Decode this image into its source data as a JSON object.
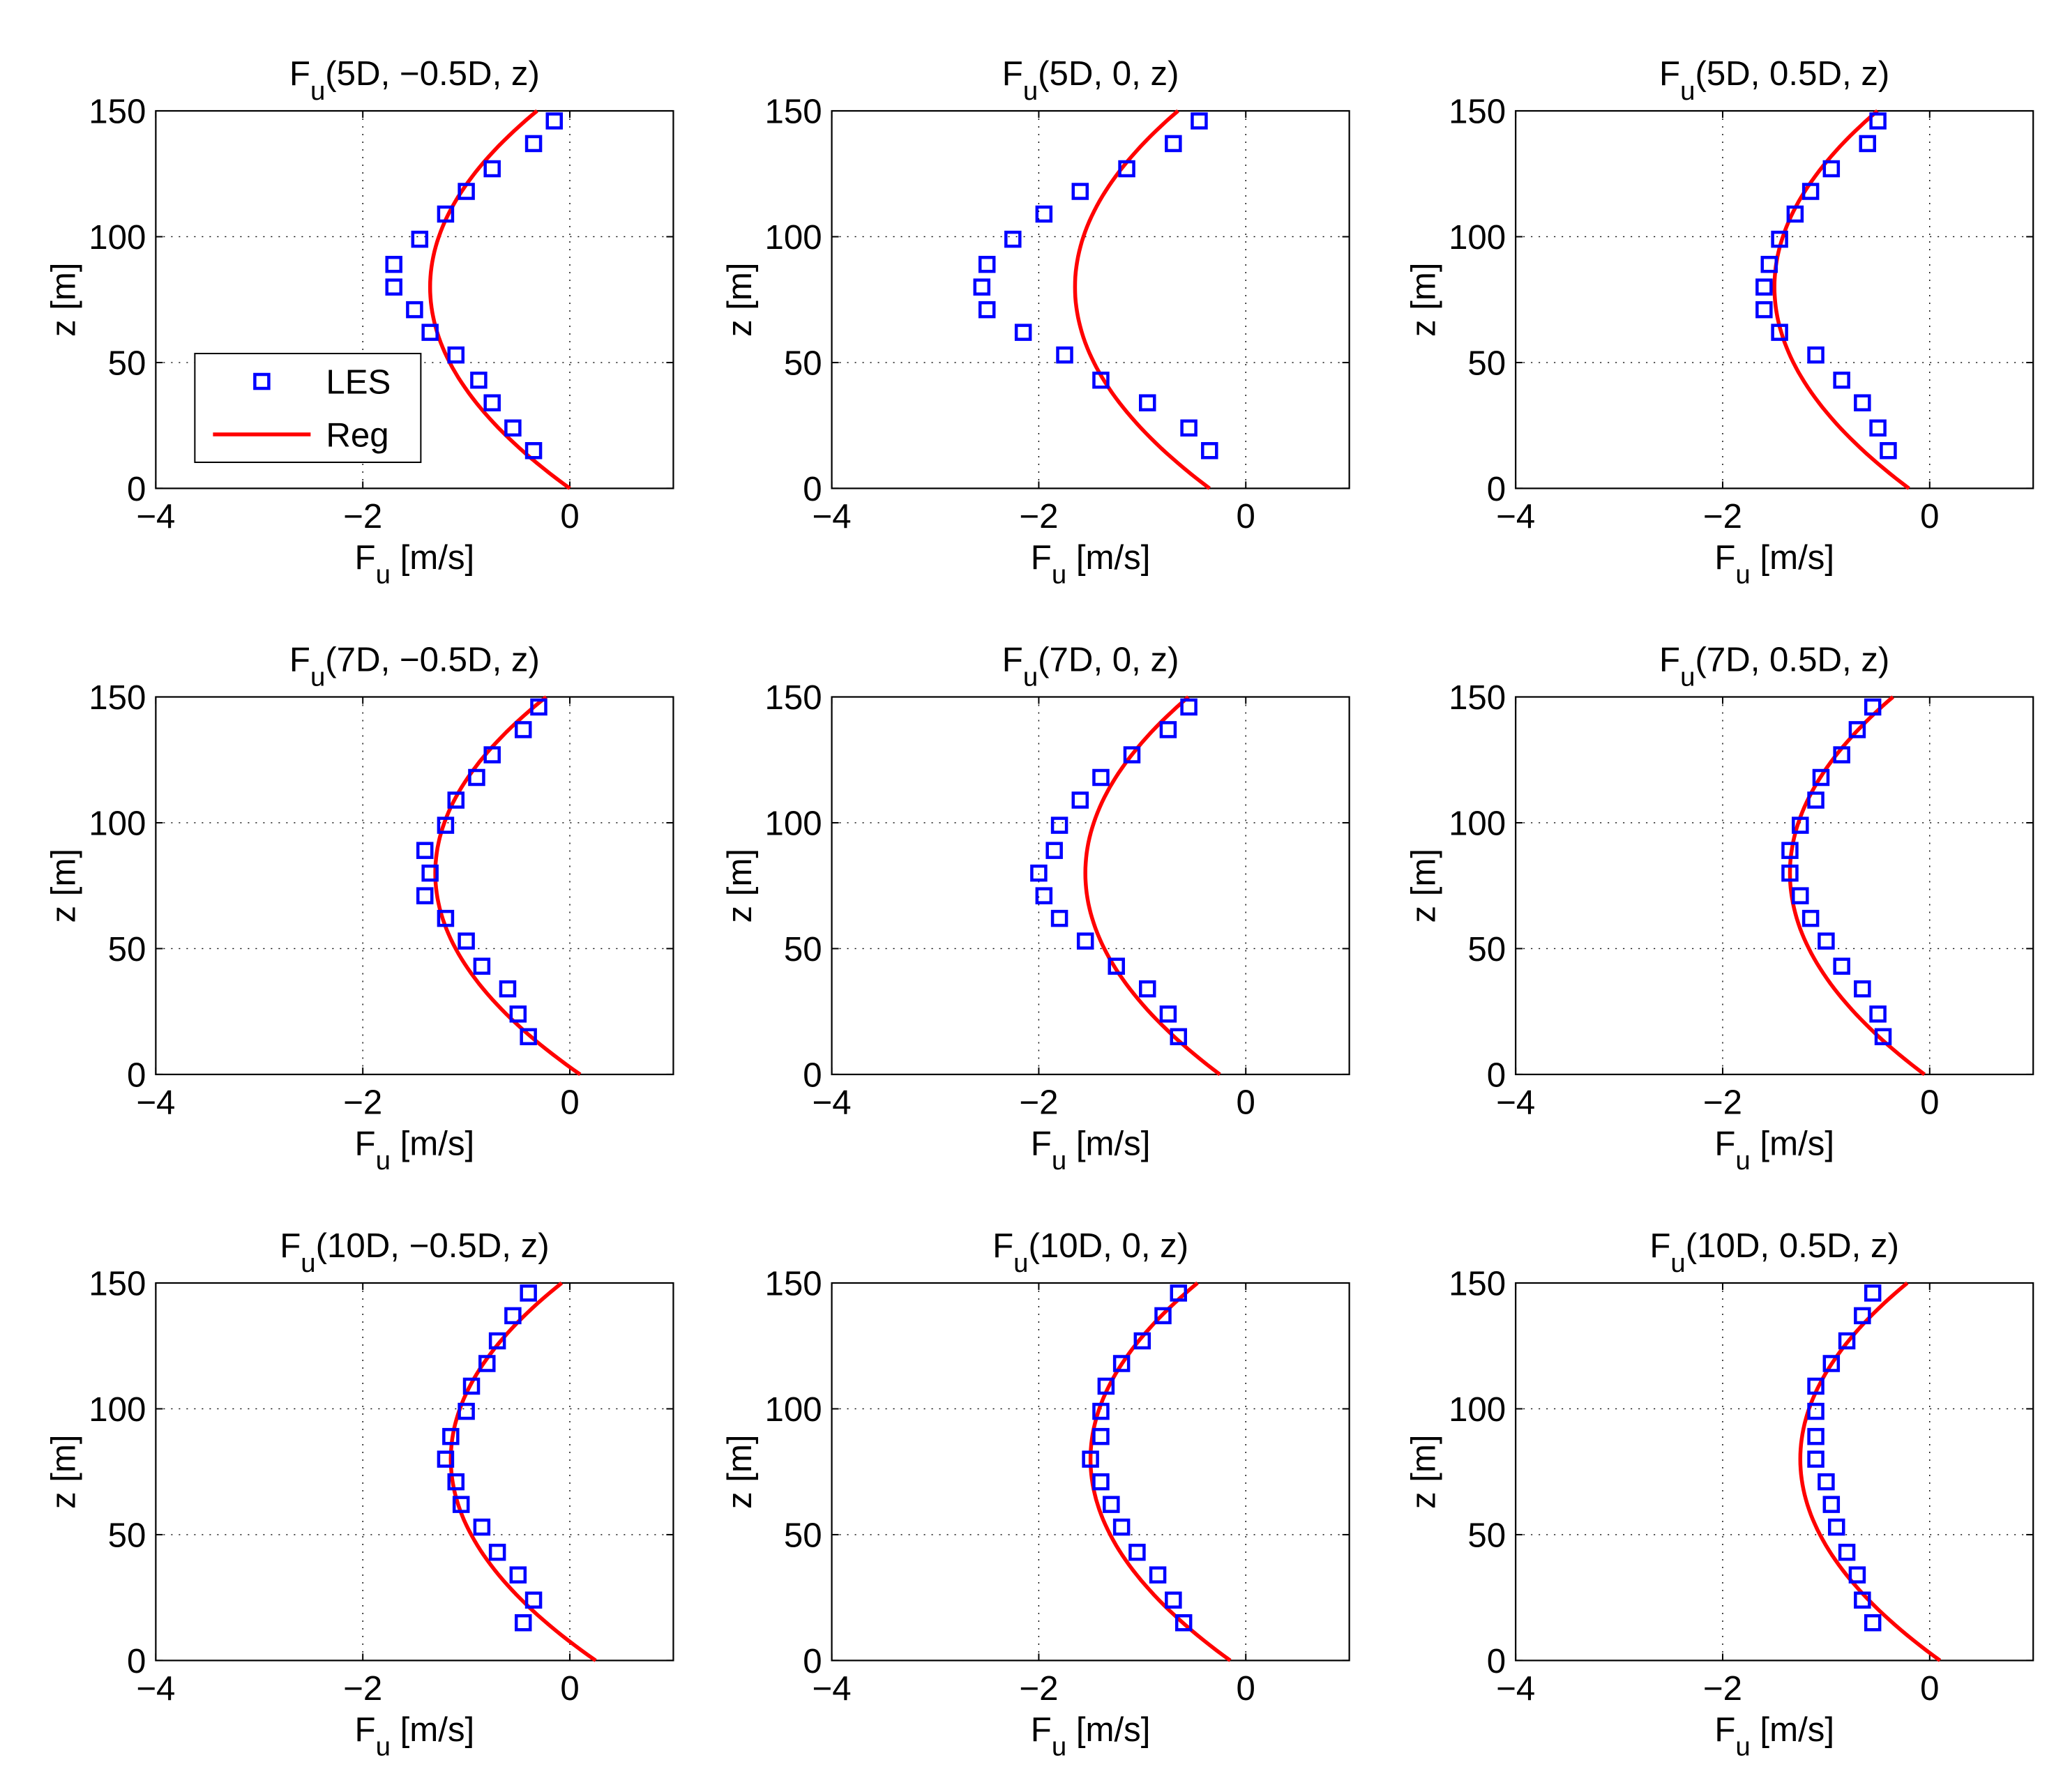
{
  "figure": {
    "x_ticks": [
      -4,
      -2,
      0
    ],
    "y_ticks": [
      0,
      50,
      100,
      150
    ],
    "xlim": [
      -4,
      1
    ],
    "ylim": [
      0,
      150
    ],
    "series_names": [
      "LES",
      "Reg"
    ],
    "colors": {
      "LES": "#0000FF",
      "Reg": "#FF0000",
      "grid": "#000000"
    }
  },
  "chart_data": [
    {
      "type": "scatter+line",
      "panel": "5D-m05",
      "title": {
        "main": "F",
        "sub": "u",
        "rest": "(5D, −0.5D, z)"
      },
      "xlabel": {
        "main": "F",
        "sub": "u",
        "rest": " [m/s]"
      },
      "ylabel": "z [m]",
      "xlim": [
        -4,
        1
      ],
      "ylim": [
        0,
        150
      ],
      "legend": {
        "location": "lower-left",
        "entries": [
          "LES",
          "Reg"
        ]
      },
      "les": {
        "z": [
          15,
          24,
          34,
          43,
          53,
          62,
          71,
          80,
          89,
          99,
          109,
          118,
          127,
          137,
          146
        ],
        "x": [
          -0.35,
          -0.55,
          -0.75,
          -0.88,
          -1.1,
          -1.35,
          -1.5,
          -1.7,
          -1.7,
          -1.45,
          -1.2,
          -1.0,
          -0.75,
          -0.35,
          -0.15
        ]
      },
      "reg": {
        "a": -1.35,
        "b": 1.35,
        "z0": 80,
        "zmax": 150
      }
    },
    {
      "type": "scatter+line",
      "panel": "5D-0",
      "title": {
        "main": "F",
        "sub": "u",
        "rest": "(5D, 0, z)"
      },
      "xlabel": {
        "main": "F",
        "sub": "u",
        "rest": " [m/s]"
      },
      "ylabel": "z [m]",
      "xlim": [
        -4,
        1
      ],
      "ylim": [
        0,
        150
      ],
      "les": {
        "z": [
          15,
          24,
          34,
          43,
          53,
          62,
          71,
          80,
          89,
          99,
          109,
          118,
          127,
          137,
          146
        ],
        "x": [
          -0.35,
          -0.55,
          -0.95,
          -1.4,
          -1.75,
          -2.15,
          -2.5,
          -2.55,
          -2.5,
          -2.25,
          -1.95,
          -1.6,
          -1.15,
          -0.7,
          -0.45
        ]
      },
      "reg": {
        "a": -1.65,
        "b": 1.3,
        "z0": 80,
        "zmax": 150
      }
    },
    {
      "type": "scatter+line",
      "panel": "5D-p05",
      "title": {
        "main": "F",
        "sub": "u",
        "rest": "(5D, 0.5D, z)"
      },
      "xlabel": {
        "main": "F",
        "sub": "u",
        "rest": " [m/s]"
      },
      "ylabel": "z [m]",
      "xlim": [
        -4,
        1
      ],
      "ylim": [
        0,
        150
      ],
      "les": {
        "z": [
          15,
          24,
          34,
          43,
          53,
          62,
          71,
          80,
          89,
          99,
          109,
          118,
          127,
          137,
          146
        ],
        "x": [
          -0.4,
          -0.5,
          -0.65,
          -0.85,
          -1.1,
          -1.45,
          -1.6,
          -1.6,
          -1.55,
          -1.45,
          -1.3,
          -1.15,
          -0.95,
          -0.6,
          -0.5
        ]
      },
      "reg": {
        "a": -1.5,
        "b": 1.3,
        "z0": 80,
        "zmax": 150
      }
    },
    {
      "type": "scatter+line",
      "panel": "7D-m05",
      "title": {
        "main": "F",
        "sub": "u",
        "rest": "(7D, −0.5D, z)"
      },
      "xlabel": {
        "main": "F",
        "sub": "u",
        "rest": " [m/s]"
      },
      "ylabel": "z [m]",
      "xlim": [
        -4,
        1
      ],
      "ylim": [
        0,
        150
      ],
      "les": {
        "z": [
          15,
          24,
          34,
          43,
          53,
          62,
          71,
          80,
          89,
          99,
          109,
          118,
          127,
          137,
          146
        ],
        "x": [
          -0.4,
          -0.5,
          -0.6,
          -0.85,
          -1.0,
          -1.2,
          -1.4,
          -1.35,
          -1.4,
          -1.2,
          -1.1,
          -0.9,
          -0.75,
          -0.45,
          -0.3
        ]
      },
      "reg": {
        "a": -1.3,
        "b": 1.4,
        "z0": 80,
        "zmax": 150
      }
    },
    {
      "type": "scatter+line",
      "panel": "7D-0",
      "title": {
        "main": "F",
        "sub": "u",
        "rest": "(7D, 0, z)"
      },
      "xlabel": {
        "main": "F",
        "sub": "u",
        "rest": " [m/s]"
      },
      "ylabel": "z [m]",
      "xlim": [
        -4,
        1
      ],
      "ylim": [
        0,
        150
      ],
      "les": {
        "z": [
          15,
          24,
          34,
          43,
          53,
          62,
          71,
          80,
          89,
          99,
          109,
          118,
          127,
          137,
          146
        ],
        "x": [
          -0.65,
          -0.75,
          -0.95,
          -1.25,
          -1.55,
          -1.8,
          -1.95,
          -2.0,
          -1.85,
          -1.8,
          -1.6,
          -1.4,
          -1.1,
          -0.75,
          -0.55
        ]
      },
      "reg": {
        "a": -1.55,
        "b": 1.3,
        "z0": 80,
        "zmax": 150
      }
    },
    {
      "type": "scatter+line",
      "panel": "7D-p05",
      "title": {
        "main": "F",
        "sub": "u",
        "rest": "(7D, 0.5D, z)"
      },
      "xlabel": {
        "main": "F",
        "sub": "u",
        "rest": " [m/s]"
      },
      "ylabel": "z [m]",
      "xlim": [
        -4,
        1
      ],
      "ylim": [
        0,
        150
      ],
      "les": {
        "z": [
          15,
          24,
          34,
          43,
          53,
          62,
          71,
          80,
          89,
          99,
          109,
          118,
          127,
          137,
          146
        ],
        "x": [
          -0.45,
          -0.5,
          -0.65,
          -0.85,
          -1.0,
          -1.15,
          -1.25,
          -1.35,
          -1.35,
          -1.25,
          -1.1,
          -1.05,
          -0.85,
          -0.7,
          -0.55
        ]
      },
      "reg": {
        "a": -1.35,
        "b": 1.3,
        "z0": 80,
        "zmax": 150
      }
    },
    {
      "type": "scatter+line",
      "panel": "10D-m05",
      "title": {
        "main": "F",
        "sub": "u",
        "rest": "(10D, −0.5D, z)"
      },
      "xlabel": {
        "main": "F",
        "sub": "u",
        "rest": " [m/s]"
      },
      "ylabel": "z [m]",
      "xlim": [
        -4,
        1
      ],
      "ylim": [
        0,
        150
      ],
      "les": {
        "z": [
          15,
          24,
          34,
          43,
          53,
          62,
          71,
          80,
          89,
          99,
          109,
          118,
          127,
          137,
          146
        ],
        "x": [
          -0.45,
          -0.35,
          -0.5,
          -0.7,
          -0.85,
          -1.05,
          -1.1,
          -1.2,
          -1.15,
          -1.0,
          -0.95,
          -0.8,
          -0.7,
          -0.55,
          -0.4
        ]
      },
      "reg": {
        "a": -1.15,
        "b": 1.4,
        "z0": 80,
        "zmax": 150
      }
    },
    {
      "type": "scatter+line",
      "panel": "10D-0",
      "title": {
        "main": "F",
        "sub": "u",
        "rest": "(10D, 0, z)"
      },
      "xlabel": {
        "main": "F",
        "sub": "u",
        "rest": " [m/s]"
      },
      "ylabel": "z [m]",
      "xlim": [
        -4,
        1
      ],
      "ylim": [
        0,
        150
      ],
      "les": {
        "z": [
          15,
          24,
          34,
          43,
          53,
          62,
          71,
          80,
          89,
          99,
          109,
          118,
          127,
          137,
          146
        ],
        "x": [
          -0.6,
          -0.7,
          -0.85,
          -1.05,
          -1.2,
          -1.3,
          -1.4,
          -1.5,
          -1.4,
          -1.4,
          -1.35,
          -1.2,
          -1.0,
          -0.8,
          -0.65
        ]
      },
      "reg": {
        "a": -1.5,
        "b": 1.35,
        "z0": 80,
        "zmax": 150
      }
    },
    {
      "type": "scatter+line",
      "panel": "10D-p05",
      "title": {
        "main": "F",
        "sub": "u",
        "rest": "(10D, 0.5D, z)"
      },
      "xlabel": {
        "main": "F",
        "sub": "u",
        "rest": " [m/s]"
      },
      "ylabel": "z [m]",
      "xlim": [
        -4,
        1
      ],
      "ylim": [
        0,
        150
      ],
      "les": {
        "z": [
          15,
          24,
          34,
          43,
          53,
          62,
          71,
          80,
          89,
          99,
          109,
          118,
          127,
          137,
          146
        ],
        "x": [
          -0.55,
          -0.65,
          -0.7,
          -0.8,
          -0.9,
          -0.95,
          -1.0,
          -1.1,
          -1.1,
          -1.1,
          -1.1,
          -0.95,
          -0.8,
          -0.65,
          -0.55
        ]
      },
      "reg": {
        "a": -1.25,
        "b": 1.35,
        "z0": 80,
        "zmax": 150
      }
    }
  ]
}
